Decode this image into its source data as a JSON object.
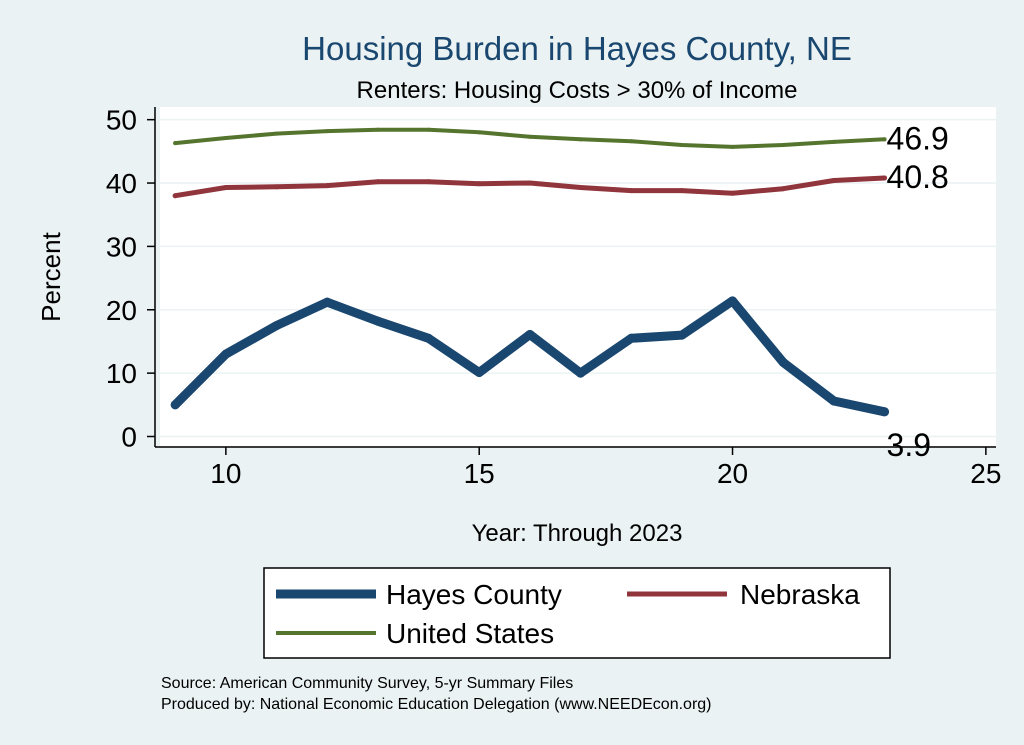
{
  "chart_data": {
    "type": "line",
    "title": "Housing Burden in Hayes County, NE",
    "subtitle": "Renters: Housing Costs > 30% of Income",
    "xlabel": "Year: Through 2023",
    "ylabel": "Percent",
    "xlim": [
      8.7,
      25.2
    ],
    "ylim": [
      -1.5,
      52
    ],
    "x_ticks": [
      "10",
      "15",
      "20",
      "25"
    ],
    "y_ticks": [
      "0",
      "10",
      "20",
      "30",
      "40",
      "50"
    ],
    "grid": true,
    "legend_position": "bottom",
    "series": [
      {
        "name": "Hayes County",
        "color": "#1a476f",
        "x": [
          9,
          10,
          11,
          12,
          13,
          14,
          15,
          16,
          17,
          18,
          19,
          20,
          21,
          22,
          23
        ],
        "values": [
          5.0,
          13.0,
          17.5,
          21.2,
          18.2,
          15.5,
          10.1,
          16.1,
          10.0,
          15.5,
          16.0,
          21.4,
          11.7,
          5.6,
          3.9
        ],
        "end_label": "3.9"
      },
      {
        "name": "Nebraska",
        "color": "#90353b",
        "x": [
          9,
          10,
          11,
          12,
          13,
          14,
          15,
          16,
          17,
          18,
          19,
          20,
          21,
          22,
          23
        ],
        "values": [
          38.0,
          39.3,
          39.4,
          39.6,
          40.2,
          40.2,
          39.9,
          40.0,
          39.3,
          38.8,
          38.8,
          38.4,
          39.1,
          40.4,
          40.8
        ],
        "end_label": "40.8"
      },
      {
        "name": "United States",
        "color": "#55752f",
        "x": [
          9,
          10,
          11,
          12,
          13,
          14,
          15,
          16,
          17,
          18,
          19,
          20,
          21,
          22,
          23
        ],
        "values": [
          46.3,
          47.1,
          47.8,
          48.2,
          48.4,
          48.4,
          48.0,
          47.3,
          46.9,
          46.6,
          46.0,
          45.7,
          46.0,
          46.5,
          46.9
        ],
        "end_label": "46.9"
      }
    ]
  },
  "source_line1": "Source: American Community Survey, 5-yr Summary Files",
  "source_line2": "Produced by: National Economic Education Delegation (www.NEEDEcon.org)"
}
